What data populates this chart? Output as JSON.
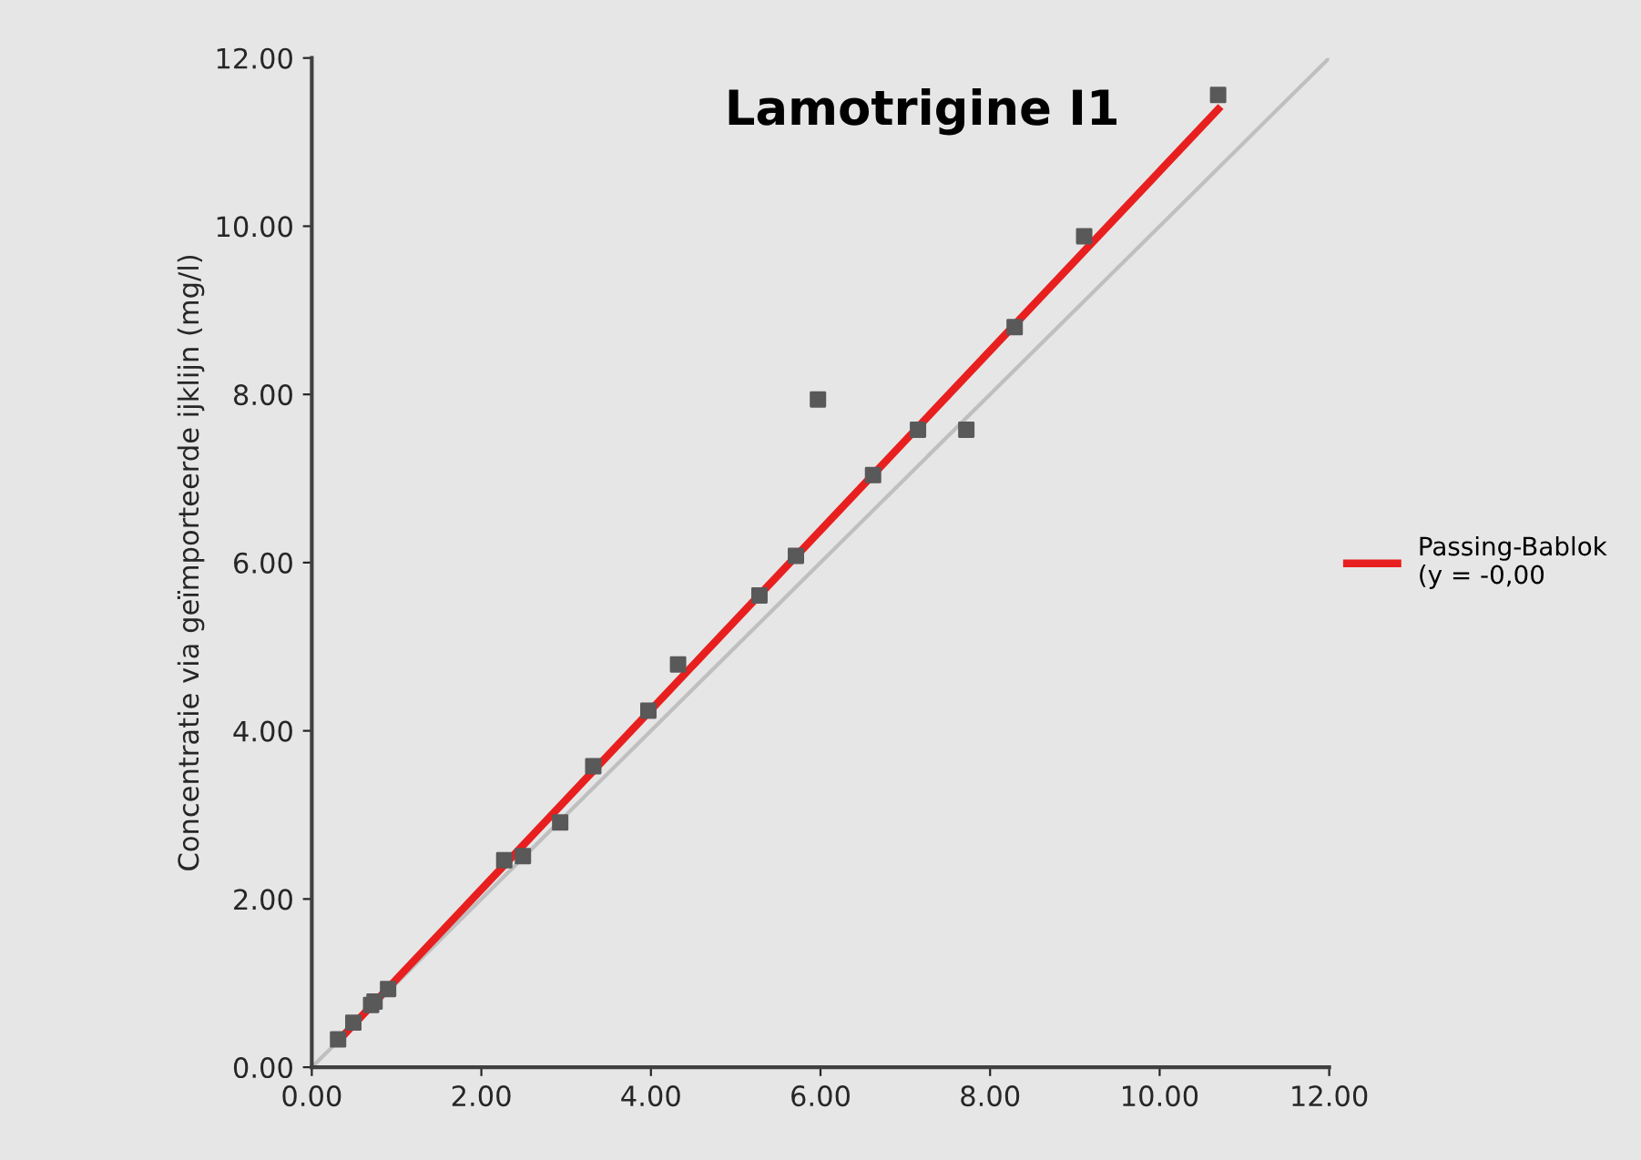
{
  "chart_data": {
    "type": "scatter",
    "title": "Lamotrigine I1",
    "ylabel": "Concentratie via geïmporteerde ijklijn (mg/l)",
    "xlim": [
      0,
      12
    ],
    "ylim": [
      0,
      12
    ],
    "xticks": [
      {
        "value": 0,
        "label": "0.00"
      },
      {
        "value": 2,
        "label": "2.00"
      },
      {
        "value": 4,
        "label": "4.00"
      },
      {
        "value": 6,
        "label": "6.00"
      },
      {
        "value": 8,
        "label": "8.00"
      },
      {
        "value": 10,
        "label": "10.00"
      },
      {
        "value": 12,
        "label": "12.00"
      }
    ],
    "yticks": [
      {
        "value": 0,
        "label": "0.00"
      },
      {
        "value": 2,
        "label": "2.00"
      },
      {
        "value": 4,
        "label": "4.00"
      },
      {
        "value": 6,
        "label": "6.00"
      },
      {
        "value": 8,
        "label": "8.00"
      },
      {
        "value": 10,
        "label": "10.00"
      },
      {
        "value": 12,
        "label": "12.00"
      }
    ],
    "grid": false,
    "legend": "right",
    "series": [
      {
        "type": "line",
        "color": "#bfbfbf",
        "x": [
          0,
          12
        ],
        "values": [
          0,
          12
        ]
      },
      {
        "marker": "square",
        "color": "#595959",
        "x": [
          0.31,
          0.49,
          0.7,
          0.74,
          0.9,
          2.27,
          2.49,
          2.93,
          3.32,
          3.97,
          4.32,
          5.28,
          5.71,
          5.97,
          6.62,
          7.15,
          7.72,
          8.29,
          9.11,
          10.69
        ],
        "values": [
          0.33,
          0.53,
          0.74,
          0.78,
          0.93,
          2.46,
          2.51,
          2.91,
          3.58,
          4.24,
          4.79,
          5.61,
          6.08,
          7.94,
          7.04,
          7.58,
          7.58,
          8.8,
          9.88,
          11.56
        ]
      },
      {
        "type": "line",
        "name": "Passing-Bablok\n(y = -0,00",
        "color": "#e81f1f",
        "x": [
          0.31,
          10.69
        ],
        "values": [
          0.31,
          11.39
        ]
      }
    ]
  }
}
